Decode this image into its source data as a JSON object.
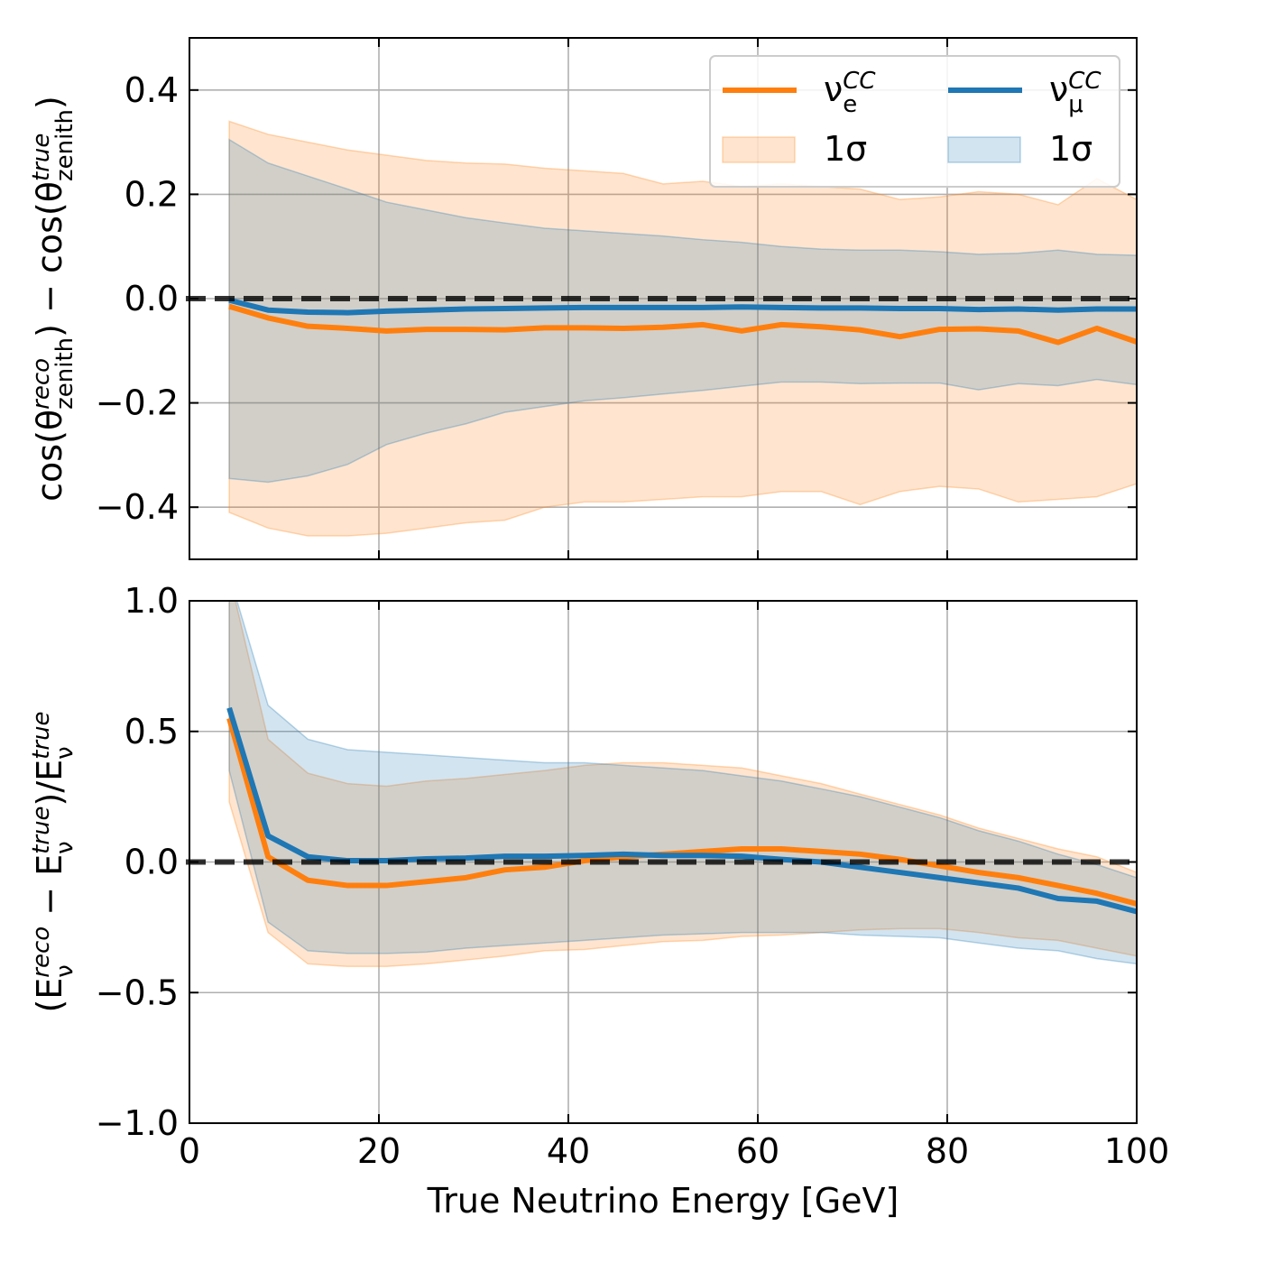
{
  "chart_data": [
    {
      "type": "line",
      "ylabel": [
        {
          "text": "cos(θ"
        },
        {
          "sub": "zenith",
          "sup": "reco"
        },
        {
          "text": ") − cos(θ"
        },
        {
          "sub": "zenith",
          "sup": "true"
        },
        {
          "text": ")"
        }
      ],
      "x": [
        4.2,
        8.3,
        12.5,
        16.7,
        20.8,
        25,
        29.2,
        33.3,
        37.5,
        41.7,
        45.8,
        50,
        54.2,
        58.3,
        62.5,
        66.7,
        70.8,
        75,
        79.2,
        83.3,
        87.5,
        91.7,
        95.8,
        100
      ],
      "xlim": [
        0,
        100
      ],
      "xticks": [
        0,
        20,
        40,
        60,
        80,
        100
      ],
      "ylim": [
        -0.5,
        0.5
      ],
      "yticks": [
        {
          "value": -0.4,
          "label": "−0.4"
        },
        {
          "value": -0.2,
          "label": "−0.2"
        },
        {
          "value": 0,
          "label": "0.0"
        },
        0.2,
        0.4
      ],
      "grid": true,
      "hline": 0,
      "legend": "upper right",
      "series": [
        {
          "name": [
            {
              "text": "ν"
            },
            {
              "sub": "e",
              "sup": "CC"
            }
          ],
          "color": "#ff7f0e",
          "band_name": "1σ",
          "values": [
            -0.015,
            -0.037,
            -0.053,
            -0.057,
            -0.062,
            -0.059,
            -0.059,
            -0.06,
            -0.056,
            -0.056,
            -0.057,
            -0.055,
            -0.05,
            -0.062,
            -0.05,
            -0.054,
            -0.06,
            -0.073,
            -0.059,
            -0.058,
            -0.062,
            -0.084,
            -0.057,
            -0.083
          ],
          "upper": [
            0.34,
            0.315,
            0.3,
            0.285,
            0.275,
            0.265,
            0.26,
            0.258,
            0.25,
            0.245,
            0.24,
            0.22,
            0.225,
            0.215,
            0.22,
            0.215,
            0.21,
            0.19,
            0.195,
            0.205,
            0.2,
            0.18,
            0.23,
            0.19
          ],
          "lower": [
            -0.41,
            -0.44,
            -0.455,
            -0.455,
            -0.45,
            -0.44,
            -0.43,
            -0.425,
            -0.4,
            -0.39,
            -0.39,
            -0.385,
            -0.38,
            -0.38,
            -0.37,
            -0.37,
            -0.395,
            -0.37,
            -0.36,
            -0.365,
            -0.39,
            -0.385,
            -0.38,
            -0.355
          ]
        },
        {
          "name": [
            {
              "text": "ν"
            },
            {
              "sub": "μ",
              "sup": "CC"
            }
          ],
          "color": "#1f77b4",
          "band_name": "1σ",
          "values": [
            -0.003,
            -0.022,
            -0.026,
            -0.027,
            -0.024,
            -0.022,
            -0.02,
            -0.019,
            -0.018,
            -0.017,
            -0.017,
            -0.017,
            -0.017,
            -0.016,
            -0.017,
            -0.018,
            -0.018,
            -0.019,
            -0.019,
            -0.021,
            -0.02,
            -0.022,
            -0.02,
            -0.02
          ],
          "upper": [
            0.305,
            0.26,
            0.235,
            0.21,
            0.185,
            0.17,
            0.155,
            0.145,
            0.135,
            0.13,
            0.125,
            0.12,
            0.113,
            0.108,
            0.1,
            0.095,
            0.093,
            0.093,
            0.09,
            0.085,
            0.087,
            0.093,
            0.085,
            0.083
          ],
          "lower": [
            -0.345,
            -0.352,
            -0.34,
            -0.318,
            -0.28,
            -0.258,
            -0.24,
            -0.218,
            -0.207,
            -0.196,
            -0.19,
            -0.183,
            -0.176,
            -0.168,
            -0.16,
            -0.16,
            -0.163,
            -0.162,
            -0.162,
            -0.175,
            -0.163,
            -0.167,
            -0.155,
            -0.165
          ]
        }
      ]
    },
    {
      "type": "line",
      "xlabel": "True Neutrino Energy [GeV]",
      "ylabel": [
        {
          "text": "(E"
        },
        {
          "sub": "ν",
          "sup": "reco"
        },
        {
          "text": " − E"
        },
        {
          "sub": "ν",
          "sup": "true"
        },
        {
          "text": ")/E"
        },
        {
          "sub": "ν",
          "sup": "true"
        }
      ],
      "x": [
        4.2,
        8.3,
        12.5,
        16.7,
        20.8,
        25,
        29.2,
        33.3,
        37.5,
        41.7,
        45.8,
        50,
        54.2,
        58.3,
        62.5,
        66.7,
        70.8,
        75,
        79.2,
        83.3,
        87.5,
        91.7,
        95.8,
        100
      ],
      "xlim": [
        0,
        100
      ],
      "xticks": [
        0,
        20,
        40,
        60,
        80,
        100
      ],
      "ylim": [
        -1,
        1
      ],
      "yticks": [
        {
          "value": -1,
          "label": "−1.0"
        },
        {
          "value": -0.5,
          "label": "−0.5"
        },
        {
          "value": 0,
          "label": "0.0"
        },
        0.5,
        {
          "value": 1,
          "label": "1.0"
        }
      ],
      "grid": true,
      "hline": 0,
      "series": [
        {
          "color": "#ff7f0e",
          "values": [
            0.55,
            0.02,
            -0.07,
            -0.09,
            -0.09,
            -0.075,
            -0.06,
            -0.03,
            -0.02,
            0.005,
            0.02,
            0.03,
            0.04,
            0.05,
            0.05,
            0.04,
            0.03,
            0.01,
            -0.015,
            -0.04,
            -0.06,
            -0.09,
            -0.12,
            -0.16
          ],
          "upper": [
            1.1,
            0.47,
            0.34,
            0.3,
            0.29,
            0.31,
            0.32,
            0.335,
            0.35,
            0.37,
            0.38,
            0.38,
            0.37,
            0.36,
            0.33,
            0.3,
            0.26,
            0.22,
            0.18,
            0.13,
            0.09,
            0.05,
            0.02,
            -0.04
          ],
          "lower": [
            0.23,
            -0.27,
            -0.39,
            -0.4,
            -0.4,
            -0.39,
            -0.375,
            -0.36,
            -0.34,
            -0.335,
            -0.32,
            -0.305,
            -0.3,
            -0.285,
            -0.28,
            -0.27,
            -0.26,
            -0.255,
            -0.255,
            -0.27,
            -0.29,
            -0.3,
            -0.33,
            -0.36
          ]
        },
        {
          "color": "#1f77b4",
          "values": [
            0.59,
            0.1,
            0.02,
            0.005,
            0.005,
            0.012,
            0.015,
            0.022,
            0.022,
            0.025,
            0.03,
            0.025,
            0.025,
            0.022,
            0.01,
            0.0,
            -0.02,
            -0.04,
            -0.06,
            -0.08,
            -0.1,
            -0.14,
            -0.15,
            -0.19
          ],
          "upper": [
            1.1,
            0.6,
            0.47,
            0.43,
            0.42,
            0.41,
            0.4,
            0.39,
            0.38,
            0.38,
            0.37,
            0.36,
            0.35,
            0.33,
            0.31,
            0.28,
            0.25,
            0.21,
            0.17,
            0.12,
            0.08,
            0.03,
            -0.01,
            -0.06
          ],
          "lower": [
            0.35,
            -0.23,
            -0.34,
            -0.35,
            -0.35,
            -0.345,
            -0.33,
            -0.32,
            -0.31,
            -0.3,
            -0.29,
            -0.28,
            -0.275,
            -0.27,
            -0.27,
            -0.27,
            -0.28,
            -0.285,
            -0.29,
            -0.31,
            -0.33,
            -0.34,
            -0.37,
            -0.39
          ]
        }
      ]
    }
  ]
}
